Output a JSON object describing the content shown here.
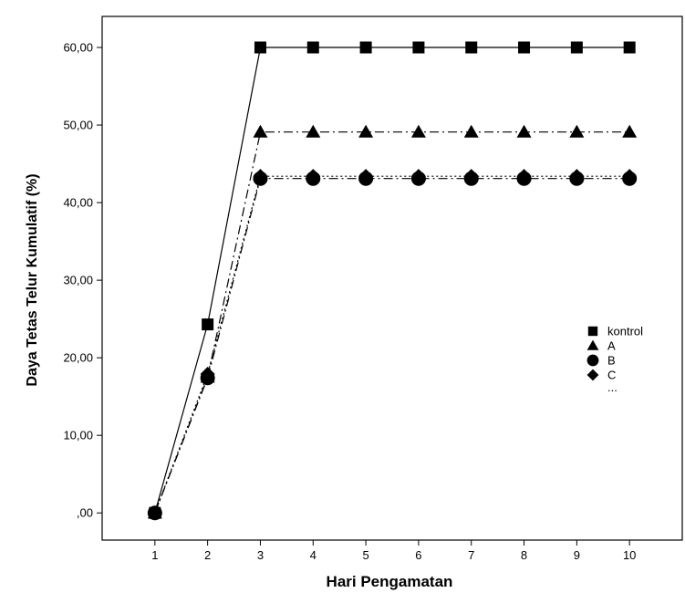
{
  "chart_data": {
    "type": "line",
    "title": "",
    "xlabel": "Hari Pengamatan",
    "ylabel": "Daya Tetas Telur Kumulatif (%)",
    "x": [
      1,
      2,
      3,
      4,
      5,
      6,
      7,
      8,
      9,
      10
    ],
    "x_tick_labels": [
      "1",
      "2",
      "3",
      "4",
      "5",
      "6",
      "7",
      "8",
      "9",
      "10"
    ],
    "y_tick_labels": [
      ",00",
      "10,00",
      "20,00",
      "30,00",
      "40,00",
      "50,00",
      "60,00"
    ],
    "xlim": [
      0,
      11
    ],
    "ylim": [
      -3.5,
      64
    ],
    "grid": false,
    "legend_position": "right",
    "series": [
      {
        "name": "kontrol",
        "marker": "square",
        "line": "solid",
        "color": "#000000",
        "values": [
          0,
          24.3,
          60,
          60,
          60,
          60,
          60,
          60,
          60,
          60
        ]
      },
      {
        "name": "A",
        "marker": "triangle",
        "line": "dash-dot",
        "color": "#000000",
        "values": [
          0,
          17.5,
          49.1,
          49.1,
          49.1,
          49.1,
          49.1,
          49.1,
          49.1,
          49.1
        ]
      },
      {
        "name": "B",
        "marker": "circle",
        "line": "dash-dot",
        "color": "#000000",
        "values": [
          0,
          17.4,
          43.1,
          43.1,
          43.1,
          43.1,
          43.1,
          43.1,
          43.1,
          43.1
        ]
      },
      {
        "name": "C",
        "marker": "diamond",
        "line": "dotted",
        "color": "#000000",
        "values": [
          0,
          17.9,
          43.4,
          43.4,
          43.4,
          43.4,
          43.4,
          43.4,
          43.4,
          43.4
        ]
      }
    ],
    "legend_extra": "..."
  }
}
